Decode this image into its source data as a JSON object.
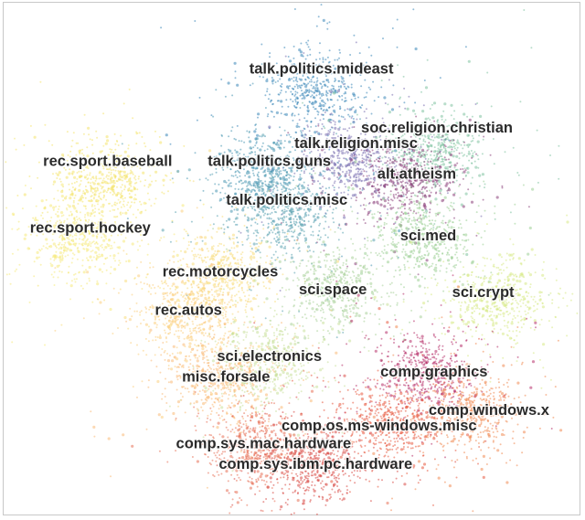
{
  "chart_data": {
    "type": "scatter",
    "title": "",
    "xlabel": "",
    "ylabel": "",
    "grid": false,
    "legend": "none",
    "xlim": [
      0,
      100
    ],
    "ylim": [
      0,
      100
    ],
    "clusters": [
      {
        "name": "talk.politics.mideast",
        "x": 54.0,
        "y": 82.5,
        "color": "#3a87b8"
      },
      {
        "name": "soc.religion.christian",
        "x": 74.5,
        "y": 71.5,
        "color": "#7fc3a1"
      },
      {
        "name": "talk.religion.misc",
        "x": 60.0,
        "y": 69.5,
        "color": "#7a6fb0"
      },
      {
        "name": "alt.atheism",
        "x": 70.0,
        "y": 65.5,
        "color": "#8a3f7a"
      },
      {
        "name": "rec.sport.baseball",
        "x": 17.5,
        "y": 65.5,
        "color": "#f4e46c"
      },
      {
        "name": "talk.politics.guns",
        "x": 45.5,
        "y": 66.5,
        "color": "#4b98b3"
      },
      {
        "name": "talk.politics.misc",
        "x": 48.5,
        "y": 58.5,
        "color": "#5ba3b0"
      },
      {
        "name": "rec.sport.hockey",
        "x": 13.0,
        "y": 54.5,
        "color": "#f5ea7c"
      },
      {
        "name": "sci.med",
        "x": 72.5,
        "y": 54.0,
        "color": "#9ccf95"
      },
      {
        "name": "rec.motorcycles",
        "x": 37.5,
        "y": 47.0,
        "color": "#f7dd7c"
      },
      {
        "name": "sci.space",
        "x": 57.0,
        "y": 44.5,
        "color": "#a9d29a"
      },
      {
        "name": "sci.crypt",
        "x": 85.5,
        "y": 42.5,
        "color": "#d7ea86"
      },
      {
        "name": "rec.autos",
        "x": 32.0,
        "y": 39.5,
        "color": "#fbd07f"
      },
      {
        "name": "sci.electronics",
        "x": 45.5,
        "y": 30.0,
        "color": "#c8e09a"
      },
      {
        "name": "misc.forsale",
        "x": 37.5,
        "y": 26.5,
        "color": "#f9b977"
      },
      {
        "name": "comp.graphics",
        "x": 73.0,
        "y": 28.0,
        "color": "#b7306a"
      },
      {
        "name": "comp.windows.x",
        "x": 80.5,
        "y": 20.5,
        "color": "#f08a54"
      },
      {
        "name": "comp.os.ms-windows.misc",
        "x": 66.5,
        "y": 18.0,
        "color": "#e85a3f"
      },
      {
        "name": "comp.sys.mac.hardware",
        "x": 43.5,
        "y": 13.5,
        "color": "#e77158"
      },
      {
        "name": "comp.sys.ibm.pc.hardware",
        "x": 53.5,
        "y": 10.0,
        "color": "#d94a45"
      }
    ],
    "labels": [
      {
        "text": "talk.politics.mideast",
        "x": 55.0,
        "y": 87.0
      },
      {
        "text": "soc.religion.christian",
        "x": 75.0,
        "y": 75.5
      },
      {
        "text": "talk.religion.misc",
        "x": 61.0,
        "y": 72.5
      },
      {
        "text": "alt.atheism",
        "x": 71.5,
        "y": 66.5
      },
      {
        "text": "rec.sport.baseball",
        "x": 18.0,
        "y": 69.0
      },
      {
        "text": "talk.politics.guns",
        "x": 46.0,
        "y": 69.0
      },
      {
        "text": "talk.politics.misc",
        "x": 49.0,
        "y": 61.5
      },
      {
        "text": "rec.sport.hockey",
        "x": 15.0,
        "y": 56.0
      },
      {
        "text": "sci.med",
        "x": 73.5,
        "y": 54.5
      },
      {
        "text": "rec.motorcycles",
        "x": 37.5,
        "y": 47.5
      },
      {
        "text": "sci.space",
        "x": 57.0,
        "y": 44.0
      },
      {
        "text": "sci.crypt",
        "x": 83.0,
        "y": 43.5
      },
      {
        "text": "rec.autos",
        "x": 32.0,
        "y": 40.0
      },
      {
        "text": "sci.electronics",
        "x": 46.0,
        "y": 31.0
      },
      {
        "text": "misc.forsale",
        "x": 38.5,
        "y": 27.0
      },
      {
        "text": "comp.graphics",
        "x": 74.5,
        "y": 28.0
      },
      {
        "text": "comp.windows.x",
        "x": 84.0,
        "y": 20.5
      },
      {
        "text": "comp.os.ms-windows.misc",
        "x": 65.0,
        "y": 17.5
      },
      {
        "text": "comp.sys.mac.hardware",
        "x": 45.0,
        "y": 14.0
      },
      {
        "text": "comp.sys.ibm.pc.hardware",
        "x": 54.0,
        "y": 10.0
      }
    ]
  }
}
